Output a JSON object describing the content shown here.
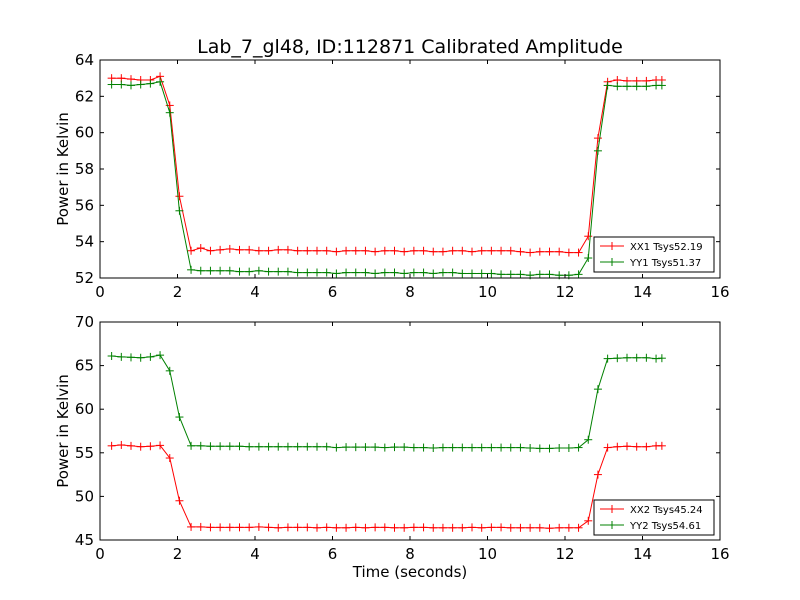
{
  "chart_data": [
    {
      "type": "line",
      "title": "Lab_7_gl48, ID:112871 Calibrated Amplitude",
      "xlabel": "",
      "ylabel": "Power in Kelvin",
      "xlim": [
        0,
        16
      ],
      "ylim": [
        52,
        64
      ],
      "xticks": [
        0,
        2,
        4,
        6,
        8,
        10,
        12,
        14,
        16
      ],
      "yticks": [
        52,
        54,
        56,
        58,
        60,
        62,
        64
      ],
      "grid": false,
      "legend_position": "lower-right",
      "x": [
        0.3,
        0.55,
        0.8,
        1.05,
        1.3,
        1.55,
        1.8,
        2.05,
        2.35,
        2.6,
        2.85,
        3.1,
        3.35,
        3.6,
        3.85,
        4.1,
        4.35,
        4.6,
        4.85,
        5.1,
        5.35,
        5.6,
        5.85,
        6.1,
        6.35,
        6.6,
        6.85,
        7.1,
        7.35,
        7.6,
        7.85,
        8.1,
        8.35,
        8.6,
        8.85,
        9.1,
        9.35,
        9.6,
        9.85,
        10.1,
        10.35,
        10.6,
        10.85,
        11.1,
        11.35,
        11.6,
        11.85,
        12.1,
        12.35,
        12.6,
        12.85,
        13.1,
        13.35,
        13.6,
        13.85,
        14.1,
        14.35,
        14.5
      ],
      "series": [
        {
          "name": "XX1 Tsys52.19",
          "color": "#ff0000",
          "values": [
            63.0,
            63.0,
            62.95,
            62.9,
            62.9,
            63.1,
            61.5,
            56.5,
            53.5,
            53.65,
            53.5,
            53.55,
            53.6,
            53.55,
            53.55,
            53.5,
            53.5,
            53.55,
            53.55,
            53.5,
            53.5,
            53.5,
            53.5,
            53.45,
            53.5,
            53.5,
            53.5,
            53.45,
            53.5,
            53.5,
            53.45,
            53.5,
            53.5,
            53.45,
            53.45,
            53.5,
            53.5,
            53.45,
            53.5,
            53.5,
            53.5,
            53.5,
            53.45,
            53.4,
            53.45,
            53.45,
            53.45,
            53.4,
            53.4,
            54.3,
            59.7,
            62.8,
            62.9,
            62.85,
            62.85,
            62.85,
            62.9,
            62.9
          ]
        },
        {
          "name": "YY1 Tsys51.37",
          "color": "#008000",
          "values": [
            62.65,
            62.65,
            62.6,
            62.65,
            62.7,
            62.8,
            61.1,
            55.7,
            52.45,
            52.4,
            52.4,
            52.4,
            52.4,
            52.35,
            52.35,
            52.4,
            52.35,
            52.35,
            52.35,
            52.3,
            52.3,
            52.3,
            52.3,
            52.25,
            52.3,
            52.3,
            52.3,
            52.25,
            52.3,
            52.3,
            52.25,
            52.3,
            52.3,
            52.25,
            52.3,
            52.3,
            52.25,
            52.25,
            52.25,
            52.25,
            52.2,
            52.2,
            52.2,
            52.15,
            52.2,
            52.2,
            52.15,
            52.15,
            52.2,
            53.1,
            59.0,
            62.6,
            62.55,
            62.55,
            62.55,
            62.55,
            62.6,
            62.6
          ]
        }
      ]
    },
    {
      "type": "line",
      "title": "",
      "xlabel": "Time (seconds)",
      "ylabel": "Power in Kelvin",
      "xlim": [
        0,
        16
      ],
      "ylim": [
        45,
        70
      ],
      "xticks": [
        0,
        2,
        4,
        6,
        8,
        10,
        12,
        14,
        16
      ],
      "yticks": [
        45,
        50,
        55,
        60,
        65,
        70
      ],
      "grid": false,
      "legend_position": "lower-right",
      "x": [
        0.3,
        0.55,
        0.8,
        1.05,
        1.3,
        1.55,
        1.8,
        2.05,
        2.35,
        2.6,
        2.85,
        3.1,
        3.35,
        3.6,
        3.85,
        4.1,
        4.35,
        4.6,
        4.85,
        5.1,
        5.35,
        5.6,
        5.85,
        6.1,
        6.35,
        6.6,
        6.85,
        7.1,
        7.35,
        7.6,
        7.85,
        8.1,
        8.35,
        8.6,
        8.85,
        9.1,
        9.35,
        9.6,
        9.85,
        10.1,
        10.35,
        10.6,
        10.85,
        11.1,
        11.35,
        11.6,
        11.85,
        12.1,
        12.35,
        12.6,
        12.85,
        13.1,
        13.35,
        13.6,
        13.85,
        14.1,
        14.35,
        14.5
      ],
      "series": [
        {
          "name": "XX2 Tsys45.24",
          "color": "#ff0000",
          "values": [
            55.8,
            55.9,
            55.8,
            55.7,
            55.75,
            55.85,
            54.4,
            49.5,
            46.5,
            46.5,
            46.45,
            46.45,
            46.45,
            46.45,
            46.45,
            46.5,
            46.45,
            46.4,
            46.45,
            46.45,
            46.45,
            46.4,
            46.45,
            46.4,
            46.4,
            46.45,
            46.4,
            46.45,
            46.45,
            46.4,
            46.4,
            46.45,
            46.45,
            46.4,
            46.4,
            46.4,
            46.4,
            46.45,
            46.4,
            46.45,
            46.45,
            46.4,
            46.4,
            46.4,
            46.4,
            46.35,
            46.4,
            46.4,
            46.4,
            47.2,
            52.5,
            55.6,
            55.7,
            55.75,
            55.7,
            55.7,
            55.8,
            55.8
          ]
        },
        {
          "name": "YY2 Tsys54.61",
          "color": "#008000",
          "values": [
            66.1,
            66.0,
            65.95,
            65.9,
            66.0,
            66.2,
            64.4,
            59.1,
            55.8,
            55.8,
            55.75,
            55.75,
            55.75,
            55.75,
            55.7,
            55.7,
            55.7,
            55.7,
            55.7,
            55.7,
            55.7,
            55.7,
            55.7,
            55.6,
            55.65,
            55.65,
            55.65,
            55.65,
            55.6,
            55.65,
            55.65,
            55.6,
            55.6,
            55.55,
            55.6,
            55.6,
            55.6,
            55.6,
            55.6,
            55.6,
            55.6,
            55.6,
            55.6,
            55.55,
            55.5,
            55.5,
            55.55,
            55.55,
            55.6,
            56.5,
            62.3,
            65.8,
            65.85,
            65.9,
            65.9,
            65.9,
            65.8,
            65.85
          ]
        }
      ]
    }
  ]
}
